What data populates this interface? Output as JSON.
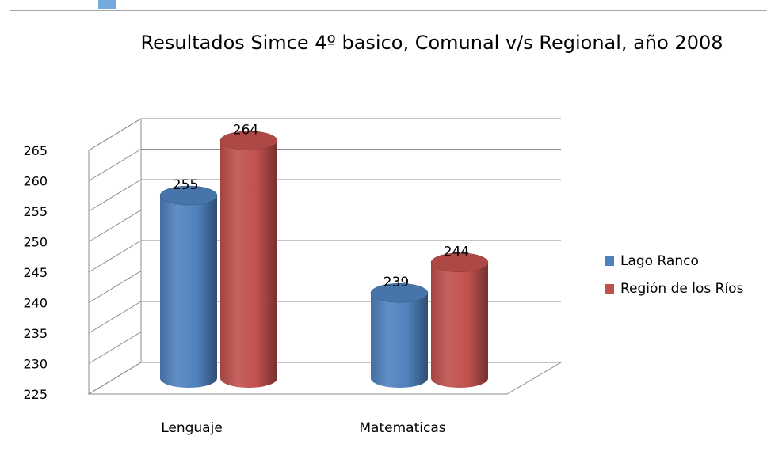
{
  "chart_data": {
    "type": "bar",
    "title": "Resultados Simce 4º basico, Comunal  v/s Regional, año 2008",
    "categories": [
      "Lenguaje",
      "Matematicas"
    ],
    "series": [
      {
        "name": "Lago Ranco",
        "values": [
          255,
          239
        ],
        "color": "#4f81bd"
      },
      {
        "name": "Región de los Ríos",
        "values": [
          264,
          244
        ],
        "color": "#c0504d"
      }
    ],
    "yticks": [
      225,
      230,
      235,
      240,
      245,
      250,
      255,
      260,
      265
    ],
    "ylim": [
      225,
      270
    ],
    "xlabel": "",
    "ylabel": "",
    "grid": true,
    "legend_position": "right",
    "three_d": true,
    "bar_shape": "cylinder"
  }
}
